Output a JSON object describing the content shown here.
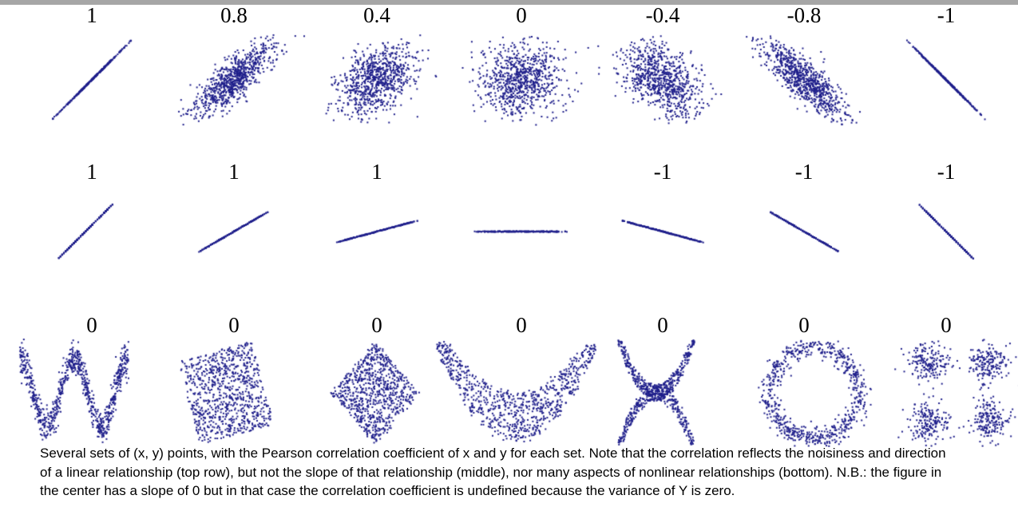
{
  "figure": {
    "kind": "correlation-examples-figure",
    "background": "#ffffff",
    "top_bar_color": "#a6a6a6",
    "point_color": "#1f1f8b",
    "label_color": "#000000"
  },
  "caption": {
    "text": "Several sets of (x, y) points, with the Pearson correlation coefficient of x and y for each set. Note that the correlation reflects the noisiness and direction of a linear relationship (top row), but not the slope of that relationship (middle), nor many aspects of nonlinear relationships (bottom). N.B.: the figure in the center has a slope of 0 but in that case the correlation coefficient is undefined because the variance of Y is zero.",
    "lines": [
      "Several sets of (x, y) points, with the Pearson correlation coefficient of x and y for each set. Note that the correlation reflects the noisiness and direction",
      "of a linear relationship (top row), but not the slope of that relationship (middle), nor many aspects of nonlinear relationships (bottom). N.B.: the figure in",
      "the center has a slope of 0 but in that case the correlation coefficient is undefined because the variance of Y is zero."
    ]
  },
  "chart_data": {
    "type": "scatter",
    "grid": "off",
    "axes": "none (unlabeled point clouds)",
    "legend": "none",
    "point_style": "tiny 2px navy squares",
    "rows": [
      {
        "name": "top",
        "meaning": "noisiness and direction of a linear relationship",
        "panels": [
          {
            "label": "1",
            "pearson_r": 1.0,
            "pattern": "perfect-line",
            "slope_deg": 45,
            "n_points": 400
          },
          {
            "label": "0.8",
            "pearson_r": 0.8,
            "pattern": "gaussian-cloud",
            "tilt": "positive",
            "n_points": 800
          },
          {
            "label": "0.4",
            "pearson_r": 0.4,
            "pattern": "gaussian-cloud",
            "tilt": "weak positive",
            "n_points": 800
          },
          {
            "label": "0",
            "pearson_r": 0.0,
            "pattern": "gaussian-cloud",
            "tilt": "none",
            "n_points": 800
          },
          {
            "label": "-0.4",
            "pearson_r": -0.4,
            "pattern": "gaussian-cloud",
            "tilt": "weak negative",
            "n_points": 800
          },
          {
            "label": "-0.8",
            "pearson_r": -0.8,
            "pattern": "gaussian-cloud",
            "tilt": "negative",
            "n_points": 800
          },
          {
            "label": "-1",
            "pearson_r": -1.0,
            "pattern": "perfect-line",
            "slope_deg": -45,
            "n_points": 400
          }
        ]
      },
      {
        "name": "middle",
        "meaning": "correlation does not reflect the slope of the relationship",
        "panels": [
          {
            "label": "1",
            "pearson_r": 1.0,
            "pattern": "dotted-line",
            "slope_deg": 45,
            "n_points": 300
          },
          {
            "label": "1",
            "pearson_r": 1.0,
            "pattern": "dotted-line",
            "slope_deg": 30,
            "n_points": 300
          },
          {
            "label": "1",
            "pearson_r": 1.0,
            "pattern": "dotted-line",
            "slope_deg": 15,
            "n_points": 300
          },
          {
            "label": "",
            "pearson_r": null,
            "pattern": "dotted-line",
            "slope_deg": 0,
            "n_points": 300
          },
          {
            "label": "-1",
            "pearson_r": -1.0,
            "pattern": "dotted-line",
            "slope_deg": -15,
            "n_points": 300
          },
          {
            "label": "-1",
            "pearson_r": -1.0,
            "pattern": "dotted-line",
            "slope_deg": -30,
            "n_points": 300
          },
          {
            "label": "-1",
            "pearson_r": -1.0,
            "pattern": "dotted-line",
            "slope_deg": -45,
            "n_points": 300
          }
        ]
      },
      {
        "name": "bottom",
        "meaning": "correlation misses many aspects of nonlinear relationships",
        "panels": [
          {
            "label": "0",
            "pearson_r": 0,
            "pattern": "cosine-wave",
            "n_points": 850
          },
          {
            "label": "0",
            "pearson_r": 0,
            "pattern": "rotated-square",
            "n_points": 850
          },
          {
            "label": "0",
            "pearson_r": 0,
            "pattern": "diamond",
            "n_points": 800
          },
          {
            "label": "0",
            "pearson_r": 0,
            "pattern": "parabola-bowl",
            "n_points": 850
          },
          {
            "label": "0",
            "pearson_r": 0,
            "pattern": "x-cross",
            "n_points": 800
          },
          {
            "label": "0",
            "pearson_r": 0,
            "pattern": "ring",
            "n_points": 720
          },
          {
            "label": "0",
            "pearson_r": 0,
            "pattern": "four-clusters",
            "n_points": 740
          }
        ]
      }
    ]
  }
}
